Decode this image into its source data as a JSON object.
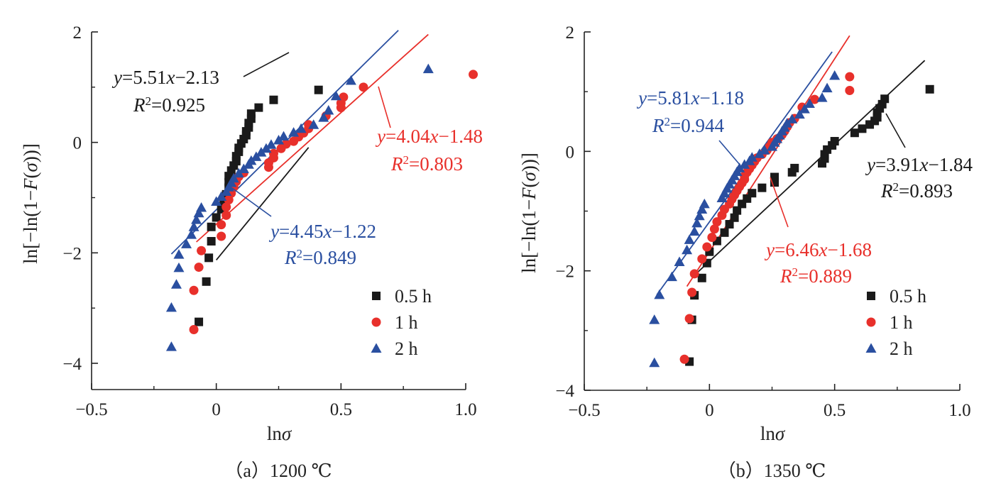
{
  "chart_data": [
    {
      "type": "scatter",
      "caption": "（a）1200 ℃",
      "xlabel": "lnσ",
      "ylabel": "ln[−ln(1−F(σ))]",
      "xlim": [
        -0.5,
        1.0
      ],
      "ylim": [
        -4.4,
        2
      ],
      "xticks": [
        "−0.5",
        "0",
        "0.5",
        "1.0"
      ],
      "yticks": [
        "2",
        "0",
        "−2",
        "−4"
      ],
      "legend_position": "bottom-right",
      "colors": {
        "0.5 h": "#1a1a1a",
        "1 h": "#e8302b",
        "2 h": "#2a4fa0"
      },
      "series": [
        {
          "name": "0.5 h",
          "marker": "square",
          "color": "#1a1a1a",
          "points": [
            [
              -0.07,
              -3.25
            ],
            [
              -0.04,
              -2.52
            ],
            [
              -0.03,
              -2.09
            ],
            [
              -0.02,
              -1.79
            ],
            [
              -0.02,
              -1.53
            ],
            [
              0.0,
              -1.36
            ],
            [
              0.02,
              -1.21
            ],
            [
              0.03,
              -1.07
            ],
            [
              0.04,
              -0.94
            ],
            [
              0.05,
              -0.82
            ],
            [
              0.05,
              -0.72
            ],
            [
              0.05,
              -0.61
            ],
            [
              0.06,
              -0.51
            ],
            [
              0.07,
              -0.42
            ],
            [
              0.08,
              -0.34
            ],
            [
              0.08,
              -0.25
            ],
            [
              0.09,
              -0.17
            ],
            [
              0.09,
              -0.1
            ],
            [
              0.1,
              -0.02
            ],
            [
              0.11,
              0.06
            ],
            [
              0.12,
              0.13
            ],
            [
              0.12,
              0.2
            ],
            [
              0.13,
              0.27
            ],
            [
              0.13,
              0.35
            ],
            [
              0.14,
              0.43
            ],
            [
              0.14,
              0.52
            ],
            [
              0.17,
              0.63
            ],
            [
              0.23,
              0.77
            ],
            [
              0.41,
              0.95
            ]
          ]
        },
        {
          "name": "1 h",
          "marker": "circle",
          "color": "#e8302b",
          "points": [
            [
              -0.09,
              -3.39
            ],
            [
              -0.09,
              -2.68
            ],
            [
              -0.07,
              -2.26
            ],
            [
              -0.06,
              -1.96
            ],
            [
              0.02,
              -1.7
            ],
            [
              0.02,
              -1.49
            ],
            [
              0.04,
              -1.32
            ],
            [
              0.04,
              -1.17
            ],
            [
              0.05,
              -1.04
            ],
            [
              0.06,
              -0.92
            ],
            [
              0.07,
              -0.81
            ],
            [
              0.08,
              -0.71
            ],
            [
              0.09,
              -0.62
            ],
            [
              0.11,
              -0.55
            ],
            [
              0.21,
              -0.45
            ],
            [
              0.21,
              -0.37
            ],
            [
              0.23,
              -0.28
            ],
            [
              0.23,
              -0.2
            ],
            [
              0.26,
              -0.11
            ],
            [
              0.28,
              -0.03
            ],
            [
              0.31,
              0.02
            ],
            [
              0.33,
              0.1
            ],
            [
              0.35,
              0.17
            ],
            [
              0.37,
              0.25
            ],
            [
              0.37,
              0.32
            ],
            [
              0.44,
              0.48
            ],
            [
              0.5,
              0.63
            ],
            [
              0.5,
              0.71
            ],
            [
              0.51,
              0.82
            ],
            [
              0.59,
              1.0
            ],
            [
              1.03,
              1.23
            ]
          ]
        },
        {
          "name": "2 h",
          "marker": "triangle",
          "color": "#2a4fa0",
          "points": [
            [
              -0.18,
              -3.7
            ],
            [
              -0.18,
              -2.99
            ],
            [
              -0.16,
              -2.57
            ],
            [
              -0.15,
              -2.27
            ],
            [
              -0.15,
              -2.03
            ],
            [
              -0.12,
              -1.84
            ],
            [
              -0.1,
              -1.67
            ],
            [
              -0.09,
              -1.53
            ],
            [
              -0.08,
              -1.4
            ],
            [
              -0.07,
              -1.28
            ],
            [
              -0.06,
              -1.18
            ],
            [
              0.0,
              -1.07
            ],
            [
              0.02,
              -0.98
            ],
            [
              0.04,
              -0.89
            ],
            [
              0.05,
              -0.81
            ],
            [
              0.06,
              -0.73
            ],
            [
              0.07,
              -0.65
            ],
            [
              0.09,
              -0.56
            ],
            [
              0.11,
              -0.48
            ],
            [
              0.13,
              -0.4
            ],
            [
              0.14,
              -0.33
            ],
            [
              0.16,
              -0.26
            ],
            [
              0.18,
              -0.18
            ],
            [
              0.2,
              -0.11
            ],
            [
              0.22,
              -0.04
            ],
            [
              0.25,
              0.04
            ],
            [
              0.27,
              0.11
            ],
            [
              0.31,
              0.18
            ],
            [
              0.34,
              0.25
            ],
            [
              0.39,
              0.32
            ],
            [
              0.43,
              0.45
            ],
            [
              0.45,
              0.58
            ],
            [
              0.48,
              0.84
            ],
            [
              0.54,
              1.12
            ],
            [
              0.85,
              1.33
            ]
          ]
        }
      ],
      "fits": [
        {
          "series": "0.5 h",
          "color": "#1a1a1a",
          "slope": 5.51,
          "intercept": -2.13,
          "x_range": [
            0.0,
            0.37
          ],
          "equation": "y=5.51x−2.13",
          "r2": "R²=0.925"
        },
        {
          "series": "1 h",
          "color": "#e8302b",
          "slope": 4.04,
          "intercept": -1.48,
          "x_range": [
            -0.08,
            0.85
          ],
          "equation": "y=4.04x−1.48",
          "r2": "R²=0.803"
        },
        {
          "series": "2 h",
          "color": "#2a4fa0",
          "slope": 4.45,
          "intercept": -1.22,
          "x_range": [
            -0.18,
            0.73
          ],
          "equation": "y=4.45x−1.22",
          "r2": "R²=0.849"
        }
      ]
    },
    {
      "type": "scatter",
      "caption": "（b）1350 ℃",
      "xlabel": "lnσ",
      "ylabel": "ln[−ln(1−F(σ))]",
      "xlim": [
        -0.5,
        1.0
      ],
      "ylim": [
        -4,
        2
      ],
      "xticks": [
        "−0.5",
        "0",
        "0.5",
        "1.0"
      ],
      "yticks": [
        "2",
        "0",
        "−2",
        "−4"
      ],
      "legend_position": "bottom-right",
      "colors": {
        "0.5 h": "#1a1a1a",
        "1 h": "#e8302b",
        "2 h": "#2a4fa0"
      },
      "series": [
        {
          "name": "0.5 h",
          "marker": "square",
          "color": "#1a1a1a",
          "points": [
            [
              -0.08,
              -3.52
            ],
            [
              -0.07,
              -2.82
            ],
            [
              -0.06,
              -2.41
            ],
            [
              -0.03,
              -2.12
            ],
            [
              -0.01,
              -1.87
            ],
            [
              0.0,
              -1.68
            ],
            [
              0.03,
              -1.5
            ],
            [
              0.06,
              -1.36
            ],
            [
              0.08,
              -1.22
            ],
            [
              0.1,
              -1.11
            ],
            [
              0.11,
              -0.99
            ],
            [
              0.13,
              -0.88
            ],
            [
              0.15,
              -0.79
            ],
            [
              0.17,
              -0.7
            ],
            [
              0.21,
              -0.61
            ],
            [
              0.26,
              -0.52
            ],
            [
              0.26,
              -0.43
            ],
            [
              0.33,
              -0.35
            ],
            [
              0.34,
              -0.28
            ],
            [
              0.45,
              -0.2
            ],
            [
              0.46,
              -0.12
            ],
            [
              0.46,
              -0.05
            ],
            [
              0.47,
              0.03
            ],
            [
              0.49,
              0.1
            ],
            [
              0.5,
              0.17
            ],
            [
              0.58,
              0.31
            ],
            [
              0.61,
              0.38
            ],
            [
              0.64,
              0.45
            ],
            [
              0.66,
              0.51
            ],
            [
              0.67,
              0.57
            ],
            [
              0.67,
              0.65
            ],
            [
              0.68,
              0.72
            ],
            [
              0.69,
              0.79
            ],
            [
              0.7,
              0.88
            ],
            [
              0.88,
              1.04
            ]
          ]
        },
        {
          "name": "1 h",
          "marker": "circle",
          "color": "#e8302b",
          "points": [
            [
              -0.1,
              -3.48
            ],
            [
              -0.08,
              -2.8
            ],
            [
              -0.07,
              -2.36
            ],
            [
              -0.06,
              -2.05
            ],
            [
              -0.03,
              -1.8
            ],
            [
              -0.01,
              -1.6
            ],
            [
              0.01,
              -1.44
            ],
            [
              0.02,
              -1.3
            ],
            [
              0.03,
              -1.18
            ],
            [
              0.05,
              -1.07
            ],
            [
              0.06,
              -0.97
            ],
            [
              0.08,
              -0.88
            ],
            [
              0.09,
              -0.8
            ],
            [
              0.1,
              -0.73
            ],
            [
              0.11,
              -0.66
            ],
            [
              0.12,
              -0.59
            ],
            [
              0.13,
              -0.53
            ],
            [
              0.14,
              -0.47
            ],
            [
              0.14,
              -0.41
            ],
            [
              0.15,
              -0.35
            ],
            [
              0.16,
              -0.29
            ],
            [
              0.17,
              -0.23
            ],
            [
              0.18,
              -0.17
            ],
            [
              0.19,
              -0.11
            ],
            [
              0.21,
              -0.05
            ],
            [
              0.23,
              0.02
            ],
            [
              0.24,
              0.08
            ],
            [
              0.25,
              0.15
            ],
            [
              0.27,
              0.21
            ],
            [
              0.29,
              0.28
            ],
            [
              0.3,
              0.34
            ],
            [
              0.31,
              0.41
            ],
            [
              0.32,
              0.48
            ],
            [
              0.34,
              0.55
            ],
            [
              0.37,
              0.74
            ],
            [
              0.42,
              0.87
            ],
            [
              0.56,
              1.02
            ],
            [
              0.56,
              1.25
            ]
          ]
        },
        {
          "name": "2 h",
          "marker": "triangle",
          "color": "#2a4fa0",
          "points": [
            [
              -0.22,
              -3.54
            ],
            [
              -0.22,
              -2.82
            ],
            [
              -0.2,
              -2.4
            ],
            [
              -0.15,
              -2.1
            ],
            [
              -0.12,
              -1.85
            ],
            [
              -0.09,
              -1.65
            ],
            [
              -0.08,
              -1.48
            ],
            [
              -0.06,
              -1.34
            ],
            [
              -0.05,
              -1.2
            ],
            [
              -0.04,
              -1.08
            ],
            [
              -0.03,
              -0.97
            ],
            [
              -0.02,
              -0.88
            ],
            [
              0.05,
              -0.78
            ],
            [
              0.06,
              -0.7
            ],
            [
              0.07,
              -0.62
            ],
            [
              0.08,
              -0.55
            ],
            [
              0.09,
              -0.48
            ],
            [
              0.1,
              -0.41
            ],
            [
              0.11,
              -0.34
            ],
            [
              0.12,
              -0.28
            ],
            [
              0.14,
              -0.22
            ],
            [
              0.16,
              -0.16
            ],
            [
              0.17,
              -0.1
            ],
            [
              0.2,
              -0.04
            ],
            [
              0.22,
              0.02
            ],
            [
              0.25,
              0.08
            ],
            [
              0.26,
              0.15
            ],
            [
              0.27,
              0.21
            ],
            [
              0.28,
              0.27
            ],
            [
              0.29,
              0.34
            ],
            [
              0.3,
              0.4
            ],
            [
              0.31,
              0.47
            ],
            [
              0.33,
              0.54
            ],
            [
              0.36,
              0.62
            ],
            [
              0.38,
              0.71
            ],
            [
              0.4,
              0.8
            ],
            [
              0.45,
              0.9
            ],
            [
              0.47,
              1.06
            ],
            [
              0.5,
              1.27
            ]
          ]
        }
      ],
      "fits": [
        {
          "series": "0.5 h",
          "color": "#1a1a1a",
          "slope": 3.91,
          "intercept": -1.84,
          "x_range": [
            -0.07,
            0.86
          ],
          "equation": "y=3.91x−1.84",
          "r2": "R²=0.893"
        },
        {
          "series": "1 h",
          "color": "#e8302b",
          "slope": 6.46,
          "intercept": -1.68,
          "x_range": [
            -0.09,
            0.56
          ],
          "equation": "y=6.46x−1.68",
          "r2": "R²=0.889"
        },
        {
          "series": "2 h",
          "color": "#2a4fa0",
          "slope": 5.81,
          "intercept": -1.18,
          "x_range": [
            -0.21,
            0.49
          ],
          "equation": "y=5.81x−1.18",
          "r2": "R²=0.944"
        }
      ]
    }
  ]
}
